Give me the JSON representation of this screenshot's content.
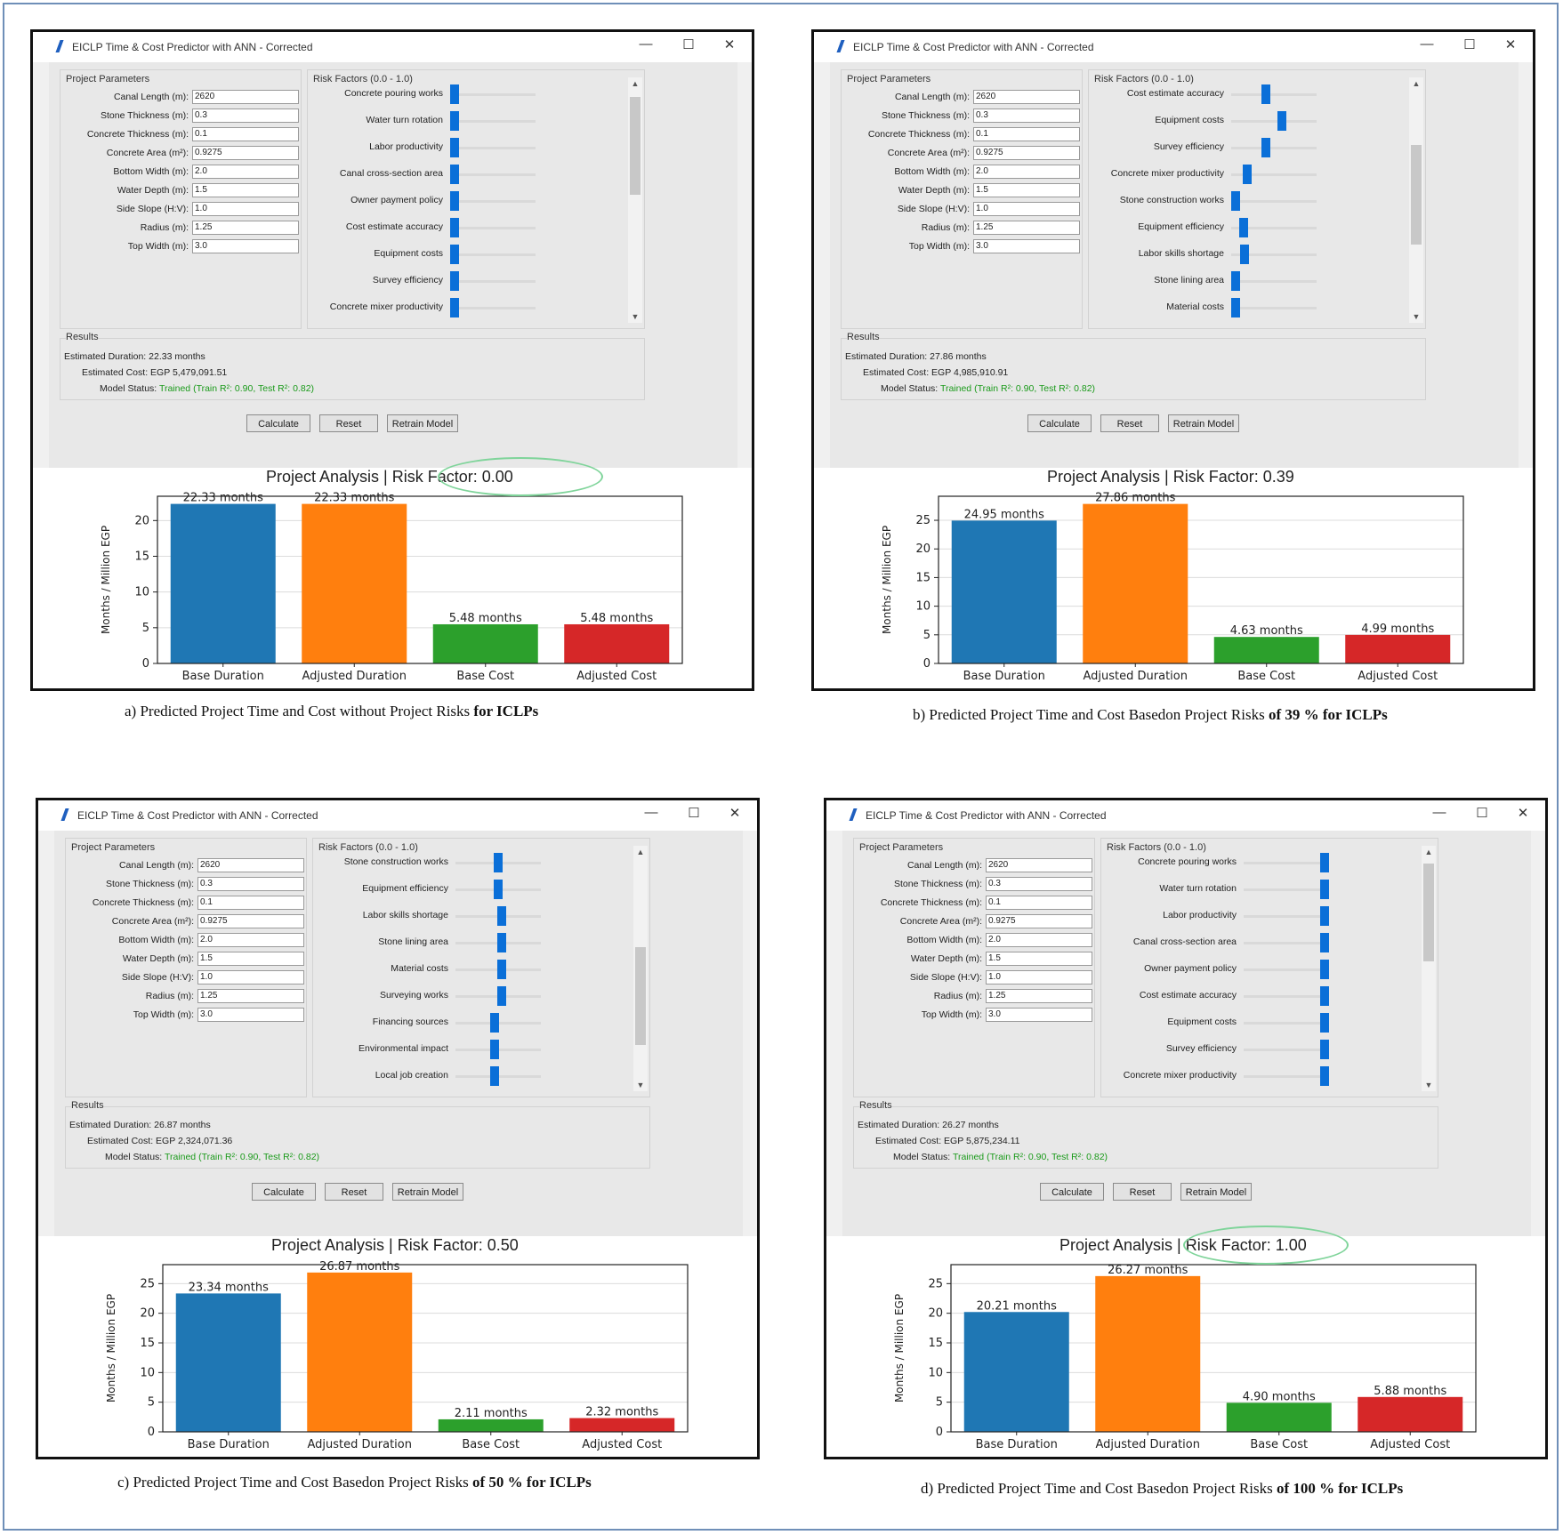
{
  "common": {
    "window_title": "EICLP Time & Cost Predictor with ANN - Corrected",
    "minimize": "—",
    "maximize": "☐",
    "close": "✕",
    "params_title": "Project Parameters",
    "risk_title": "Risk Factors (0.0 - 1.0)",
    "results_title": "Results",
    "duration_label": "Estimated Duration:",
    "cost_label": "Estimated Cost:",
    "status_label": "Model Status:",
    "status_value": "Trained (Train R²: 0.90, Test R²: 0.82)",
    "calculate": "Calculate",
    "reset": "Reset",
    "retrain": "Retrain Model",
    "params": [
      {
        "label": "Canal Length (m):",
        "value": "2620"
      },
      {
        "label": "Stone Thickness (m):",
        "value": "0.3"
      },
      {
        "label": "Concrete Thickness (m):",
        "value": "0.1"
      },
      {
        "label": "Concrete Area (m²):",
        "value": "0.9275"
      },
      {
        "label": "Bottom Width (m):",
        "value": "2.0"
      },
      {
        "label": "Water Depth (m):",
        "value": "1.5"
      },
      {
        "label": "Side Slope (H:V):",
        "value": "1.0"
      },
      {
        "label": "Radius (m):",
        "value": "1.25"
      },
      {
        "label": "Top Width (m):",
        "value": "3.0"
      }
    ],
    "ylabel": "Months / Million EGP",
    "categories": [
      "Base Duration",
      "Adjusted Duration",
      "Base Cost",
      "Adjusted Cost"
    ],
    "colors": [
      "#1f77b4",
      "#ff7f0e",
      "#2ca02c",
      "#d62728"
    ]
  },
  "panels": [
    {
      "risks": [
        {
          "label": "Concrete pouring works",
          "value": 0.0
        },
        {
          "label": "Water turn rotation",
          "value": 0.0
        },
        {
          "label": "Labor productivity",
          "value": 0.0
        },
        {
          "label": "Canal cross-section area",
          "value": 0.0
        },
        {
          "label": "Owner payment policy",
          "value": 0.0
        },
        {
          "label": "Cost estimate accuracy",
          "value": 0.0
        },
        {
          "label": "Equipment costs",
          "value": 0.0
        },
        {
          "label": "Survey efficiency",
          "value": 0.0
        },
        {
          "label": "Concrete mixer productivity",
          "value": 0.0
        }
      ],
      "duration": "22.33 months",
      "cost": "EGP 5,479,091.51",
      "chart_title": "Project Analysis | Risk Factor: 0.00",
      "caption_plain": "a) Predicted Project Time and Cost without Project Risks ",
      "caption_bold": "for ICLPs"
    },
    {
      "risks": [
        {
          "label": "Cost estimate accuracy",
          "value": 0.4
        },
        {
          "label": "Equipment costs",
          "value": 0.6
        },
        {
          "label": "Survey efficiency",
          "value": 0.4
        },
        {
          "label": "Concrete mixer productivity",
          "value": 0.15
        },
        {
          "label": "Stone construction works",
          "value": 0.0
        },
        {
          "label": "Equipment efficiency",
          "value": 0.1
        },
        {
          "label": "Labor skills shortage",
          "value": 0.12
        },
        {
          "label": "Stone lining area",
          "value": 0.0
        },
        {
          "label": "Material costs",
          "value": 0.0
        }
      ],
      "duration": "27.86 months",
      "cost": "EGP 4,985,910.91",
      "chart_title": "Project Analysis | Risk Factor: 0.39",
      "caption_plain": "b) Predicted Project Time and Cost Basedon Project Risks ",
      "caption_bold": "of 39 % for ICLPs"
    },
    {
      "risks": [
        {
          "label": "Stone construction works",
          "value": 0.5
        },
        {
          "label": "Equipment efficiency",
          "value": 0.5
        },
        {
          "label": "Labor skills shortage",
          "value": 0.55
        },
        {
          "label": "Stone lining area",
          "value": 0.55
        },
        {
          "label": "Material costs",
          "value": 0.55
        },
        {
          "label": "Surveying works",
          "value": 0.55
        },
        {
          "label": "Financing sources",
          "value": 0.45
        },
        {
          "label": "Environmental impact",
          "value": 0.45
        },
        {
          "label": "Local job creation",
          "value": 0.45
        }
      ],
      "duration": "26.87 months",
      "cost": "EGP 2,324,071.36",
      "chart_title": "Project Analysis | Risk Factor: 0.50",
      "caption_plain": "c) Predicted Project Time and Cost Basedon Project Risks ",
      "caption_bold": "of 50 % for ICLPs"
    },
    {
      "risks": [
        {
          "label": "Concrete pouring works",
          "value": 1.0
        },
        {
          "label": "Water turn rotation",
          "value": 1.0
        },
        {
          "label": "Labor productivity",
          "value": 1.0
        },
        {
          "label": "Canal cross-section area",
          "value": 1.0
        },
        {
          "label": "Owner payment policy",
          "value": 1.0
        },
        {
          "label": "Cost estimate accuracy",
          "value": 1.0
        },
        {
          "label": "Equipment costs",
          "value": 1.0
        },
        {
          "label": "Survey efficiency",
          "value": 1.0
        },
        {
          "label": "Concrete mixer productivity",
          "value": 1.0
        }
      ],
      "duration": "26.27 months",
      "cost": "EGP 5,875,234.11",
      "chart_title": "Project Analysis | Risk Factor: 1.00",
      "caption_plain": "d) Predicted Project Time and Cost Basedon Project Risks ",
      "caption_bold": "of 100 % for ICLPs"
    }
  ],
  "chart_data": [
    {
      "type": "bar",
      "title": "Project Analysis | Risk Factor: 0.00",
      "categories": [
        "Base Duration",
        "Adjusted Duration",
        "Base Cost",
        "Adjusted Cost"
      ],
      "values": [
        22.33,
        22.33,
        5.48,
        5.48
      ],
      "labels": [
        "22.33 months",
        "22.33 months",
        "5.48 months",
        "5.48 months"
      ],
      "ylabel": "Months / Million EGP",
      "ylim": [
        0,
        23.4
      ],
      "yticks": [
        0,
        5,
        10,
        15,
        20
      ]
    },
    {
      "type": "bar",
      "title": "Project Analysis | Risk Factor: 0.39",
      "categories": [
        "Base Duration",
        "Adjusted Duration",
        "Base Cost",
        "Adjusted Cost"
      ],
      "values": [
        24.95,
        27.86,
        4.63,
        4.99
      ],
      "labels": [
        "24.95 months",
        "27.86 months",
        "4.63 months",
        "4.99 months"
      ],
      "ylabel": "Months / Million EGP",
      "ylim": [
        0,
        29.2
      ],
      "yticks": [
        0,
        5,
        10,
        15,
        20,
        25
      ]
    },
    {
      "type": "bar",
      "title": "Project Analysis | Risk Factor: 0.50",
      "categories": [
        "Base Duration",
        "Adjusted Duration",
        "Base Cost",
        "Adjusted Cost"
      ],
      "values": [
        23.34,
        26.87,
        2.11,
        2.32
      ],
      "labels": [
        "23.34 months",
        "26.87 months",
        "2.11 months",
        "2.32 months"
      ],
      "ylabel": "Months / Million EGP",
      "ylim": [
        0,
        28.2
      ],
      "yticks": [
        0,
        5,
        10,
        15,
        20,
        25
      ]
    },
    {
      "type": "bar",
      "title": "Project Analysis | Risk Factor: 1.00",
      "categories": [
        "Base Duration",
        "Adjusted Duration",
        "Base Cost",
        "Adjusted Cost"
      ],
      "values": [
        20.21,
        26.27,
        4.9,
        5.88
      ],
      "labels": [
        "20.21 months",
        "26.27 months",
        "4.90 months",
        "5.88 months"
      ],
      "ylabel": "Months / Million EGP",
      "ylim": [
        0,
        28.2
      ],
      "yticks": [
        0,
        5,
        10,
        15,
        20,
        25
      ]
    }
  ]
}
